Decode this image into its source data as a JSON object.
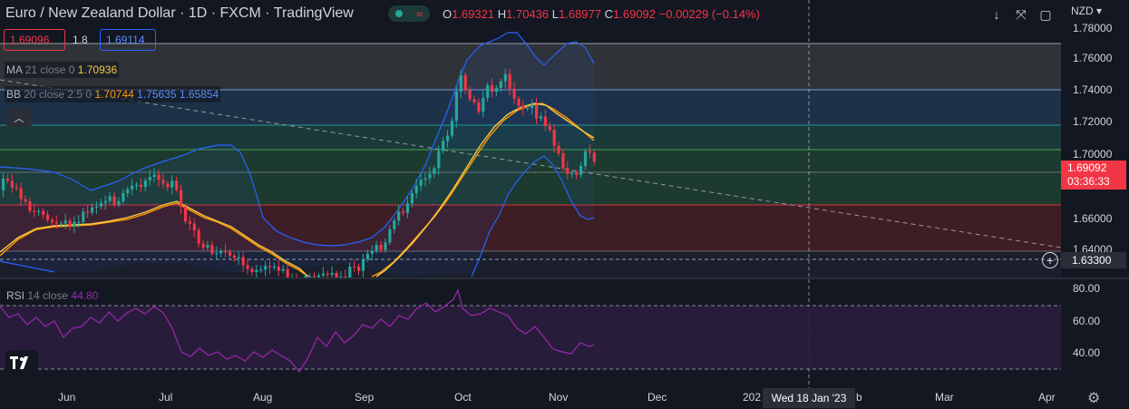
{
  "header": {
    "title": "Euro / New Zealand Dollar · 1D · FXCM · TradingView",
    "ohlc": [
      {
        "k": "O",
        "v": "1.69321"
      },
      {
        "k": "H",
        "v": "1.70436"
      },
      {
        "k": "L",
        "v": "1.68977"
      },
      {
        "k": "C",
        "v": "1.69092"
      },
      {
        "k": "",
        "v": "−0.00229 (−0.14%)"
      }
    ]
  },
  "trade": {
    "sell": "1.69096",
    "spread": "1.8",
    "buy": "1.69114"
  },
  "indicators": {
    "ma": {
      "label": "MA",
      "params": "21 close 0",
      "value": "1.70936",
      "color": "#f7c948"
    },
    "bb": {
      "label": "BB",
      "params": "20 close 2.5 0",
      "basis": "1.70744",
      "upper": "1.75635",
      "lower": "1.65854",
      "basis_color": "#ff9800",
      "band_color": "#2962ff"
    },
    "rsi": {
      "label": "RSI",
      "params": "14 close",
      "value": "44.80",
      "color": "#9c27b0"
    }
  },
  "toolbar": {
    "currency": "NZD",
    "buttons": [
      "download-icon",
      "fullscreen-icon",
      "snapshot-icon"
    ]
  },
  "price_axis": [
    "1.78000",
    "1.76000",
    "1.74000",
    "1.72000",
    "1.70000",
    "1.66000",
    "1.64000"
  ],
  "rsi_axis": [
    "80.00",
    "60.00",
    "40.00"
  ],
  "last_price": {
    "value": "1.69092",
    "countdown": "03:36:33"
  },
  "crosshair": {
    "price": "1.63300",
    "date": "Wed 18 Jan '23"
  },
  "time_axis": [
    "Jun",
    "Jul",
    "Aug",
    "Sep",
    "Oct",
    "Nov",
    "Dec",
    "202",
    "b",
    "Mar",
    "Apr"
  ],
  "colors": {
    "up": "#26a69a",
    "down": "#f23645",
    "background": "#131722"
  }
}
